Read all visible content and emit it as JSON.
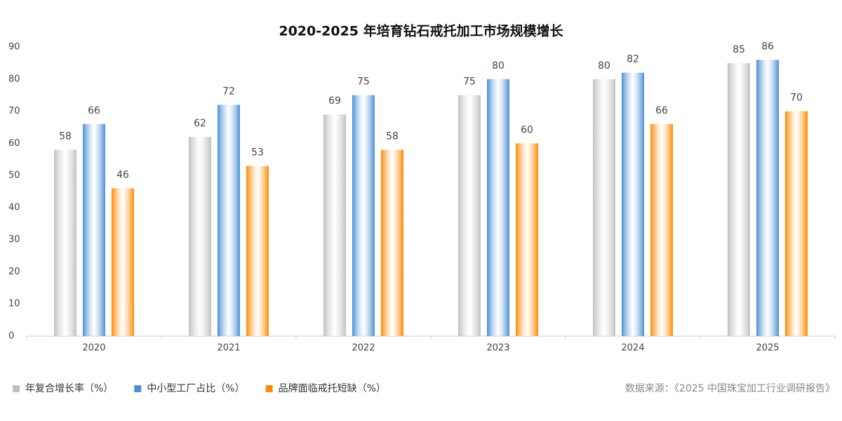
{
  "chart_data": {
    "type": "bar",
    "title": "2020-2025 年培育钻石戒托加工市场规模增长",
    "categories": [
      "2020",
      "2021",
      "2022",
      "2023",
      "2024",
      "2025"
    ],
    "series": [
      {
        "name": "年复合增长率（%）",
        "color": "#c0c0c0",
        "values": [
          58,
          62,
          69,
          75,
          80,
          85
        ]
      },
      {
        "name": "中小型工厂占比（%）",
        "color": "#4a8fd6",
        "values": [
          66,
          72,
          75,
          80,
          82,
          86
        ]
      },
      {
        "name": "品牌面临戒托短缺（%）",
        "color": "#ff8a00",
        "values": [
          46,
          53,
          58,
          60,
          66,
          70
        ]
      }
    ],
    "ylim": [
      0,
      90
    ],
    "yticks": [
      0,
      10,
      20,
      30,
      40,
      50,
      60,
      70,
      80,
      90
    ],
    "grid": false,
    "legend": "bottom-left",
    "source": "数据来源：《2025 中国珠宝加工行业调研报告》"
  }
}
